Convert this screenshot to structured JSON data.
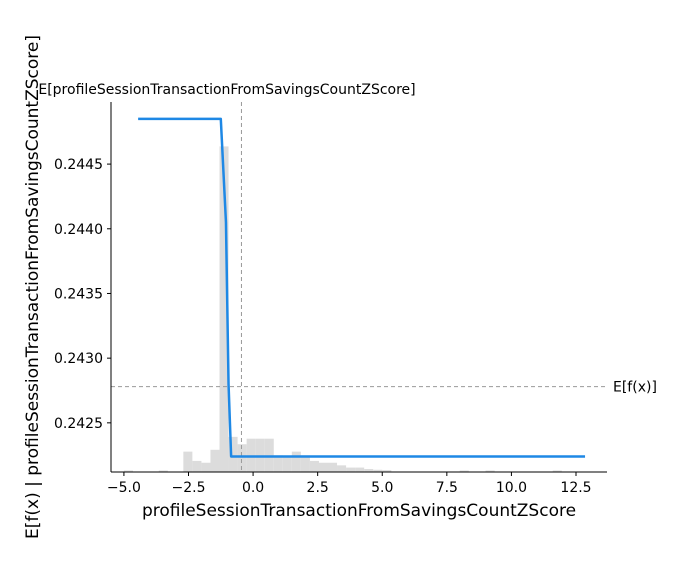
{
  "chart_data": {
    "type": "line",
    "title": "E[profileSessionTransactionFromSavingsCountZScore]",
    "xlabel": "profileSessionTransactionFromSavingsCountZScore",
    "ylabel": "E[f(x) | profileSessionTransactionFromSavingsCountZScore]",
    "xlim": [
      -5.5,
      13.7
    ],
    "ylim": [
      0.24212,
      0.24498
    ],
    "x_ticks": [
      -5.0,
      -2.5,
      0.0,
      2.5,
      5.0,
      7.5,
      10.0,
      12.5
    ],
    "x_tick_labels": [
      "−5.0",
      "−2.5",
      "0.0",
      "2.5",
      "5.0",
      "7.5",
      "10.0",
      "12.5"
    ],
    "y_ticks": [
      0.2425,
      0.243,
      0.2435,
      0.244,
      0.2445
    ],
    "y_tick_labels": [
      "0.2425",
      "0.2430",
      "0.2435",
      "0.2440",
      "0.2445"
    ],
    "grid": false,
    "colors": {
      "line": "#1e88e5",
      "histogram": "#dcdcdc",
      "reference": "#999999"
    },
    "series": [
      {
        "x": [
          -4.45,
          -1.25,
          -1.05,
          -0.95,
          -0.85,
          0.0,
          5.0,
          10.0,
          12.85
        ],
        "y": [
          0.24485,
          0.24485,
          0.24405,
          0.2428,
          0.24224,
          0.24224,
          0.24224,
          0.24224,
          0.24224
        ]
      }
    ],
    "expected_x": -0.45,
    "expected_value_line": 0.24278,
    "expected_value_label": "E[f(x)]",
    "histogram": {
      "bin_width": 0.35,
      "bin_starts": [
        -5.0,
        -3.65,
        -2.7,
        -2.35,
        -2.0,
        -1.65,
        -1.3,
        -0.95,
        -0.6,
        -0.25,
        0.1,
        0.45,
        0.8,
        1.15,
        1.5,
        1.85,
        2.2,
        2.55,
        2.9,
        3.25,
        3.6,
        3.95,
        4.3,
        4.65,
        5.0,
        8.0,
        9.0,
        11.6
      ],
      "heights": [
        0.004,
        0.004,
        0.055,
        0.03,
        0.025,
        0.06,
        0.88,
        0.095,
        0.075,
        0.09,
        0.09,
        0.09,
        0.045,
        0.04,
        0.055,
        0.045,
        0.03,
        0.025,
        0.025,
        0.018,
        0.012,
        0.012,
        0.008,
        0.006,
        0.005,
        0.004,
        0.004,
        0.004
      ]
    }
  }
}
